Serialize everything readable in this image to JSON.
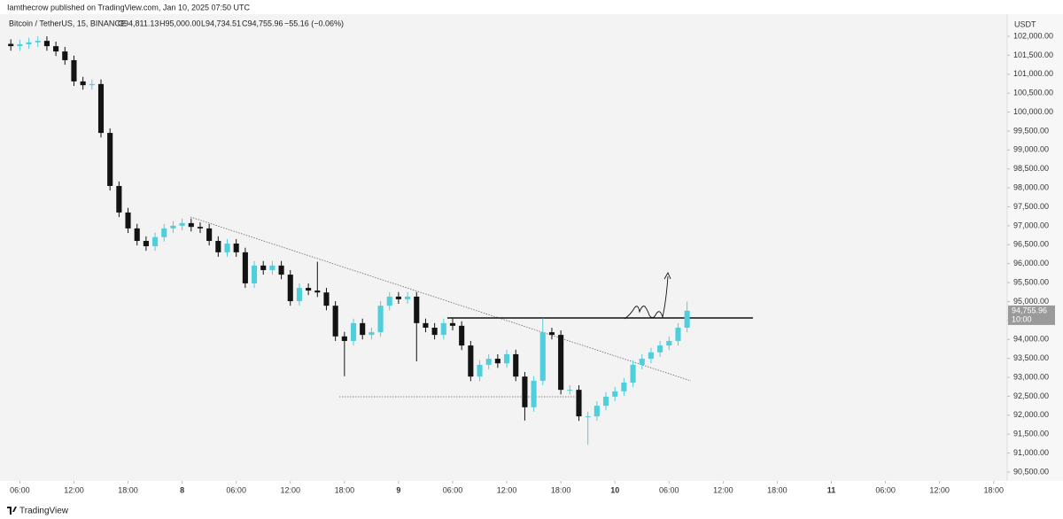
{
  "header": {
    "published": "Iamthecrow published on TradingView.com, Jan 10, 2025 07:50 UTC",
    "symbol": "Bitcoin / TetherUS, 15, BINANCE",
    "open": "O94,811.13",
    "high": "H95,000.00",
    "low": "L94,734.51",
    "close": "C94,755.96",
    "change": "−55.16 (−0.06%)"
  },
  "chart_data": {
    "type": "candlestick",
    "currency": "USDT",
    "up_color": "#4fcfdc",
    "down_color": "#131313",
    "x": [
      5,
      6,
      7,
      8,
      9,
      10,
      11,
      12,
      13,
      14,
      15,
      16,
      17,
      18,
      19,
      20,
      21,
      22,
      23,
      24,
      25,
      26,
      27,
      28,
      29,
      30,
      31,
      32,
      33,
      34,
      35,
      36,
      37,
      38,
      39,
      40,
      41,
      42,
      43,
      44,
      45,
      46,
      47,
      48,
      49,
      50,
      51,
      52,
      53,
      54,
      55,
      56,
      57,
      58,
      59,
      60,
      61,
      62,
      63,
      64,
      65,
      66,
      67,
      68,
      69,
      70,
      71,
      72,
      73,
      74,
      75,
      76,
      77,
      78,
      79,
      80
    ],
    "open": [
      101800,
      101740,
      101790,
      101840,
      101880,
      101740,
      101600,
      101370,
      100810,
      100710,
      100740,
      99450,
      98050,
      97350,
      96930,
      96600,
      96460,
      96700,
      96930,
      97000,
      97070,
      96970,
      96930,
      96600,
      96300,
      96530,
      96300,
      95480,
      95950,
      95830,
      95950,
      95710,
      95010,
      95360,
      95290,
      95240,
      94890,
      94080,
      93960,
      94430,
      94120,
      94190,
      94890,
      95130,
      95060,
      95130,
      94430,
      94310,
      94120,
      94430,
      94360,
      93840,
      93020,
      93330,
      93490,
      93370,
      93610,
      93020,
      92210,
      92910,
      94190,
      94120,
      92670,
      92670,
      91970,
      91970,
      92250,
      92490,
      92630,
      92860,
      93330,
      93490,
      93660,
      93840,
      93960,
      94310
    ],
    "high": [
      101920,
      101910,
      101960,
      102000,
      102000,
      101860,
      101720,
      101490,
      100930,
      100860,
      100860,
      99570,
      98170,
      97470,
      97050,
      96720,
      96820,
      97050,
      97120,
      97190,
      97190,
      97090,
      97050,
      96720,
      96650,
      96650,
      96420,
      96070,
      96070,
      96070,
      96070,
      95830,
      95480,
      95480,
      96050,
      95360,
      95010,
      94200,
      94550,
      94550,
      94310,
      95010,
      95250,
      95250,
      95250,
      95250,
      94550,
      94430,
      94550,
      94550,
      94480,
      93960,
      93450,
      93610,
      93610,
      93730,
      93730,
      93140,
      93030,
      94560,
      94310,
      94240,
      92790,
      92790,
      92090,
      92370,
      92610,
      92750,
      92980,
      93450,
      93610,
      93780,
      93960,
      94080,
      94430,
      95000
    ],
    "low": [
      101620,
      101620,
      101670,
      101720,
      101620,
      101480,
      101250,
      100690,
      100590,
      100590,
      99330,
      97930,
      97230,
      96810,
      96480,
      96340,
      96340,
      96580,
      96810,
      96880,
      96850,
      96810,
      96480,
      96180,
      96180,
      96180,
      95360,
      95360,
      95710,
      95710,
      95590,
      94890,
      94890,
      95170,
      95120,
      94770,
      93960,
      93030,
      93840,
      94000,
      94000,
      94070,
      94770,
      94940,
      94940,
      93420,
      94190,
      94000,
      94000,
      94240,
      93720,
      92900,
      92900,
      93210,
      93250,
      93250,
      92900,
      91860,
      92090,
      92790,
      94000,
      92550,
      92550,
      91850,
      91220,
      91850,
      92130,
      92370,
      92510,
      92740,
      93210,
      93370,
      93540,
      93720,
      93840,
      94190
    ],
    "close": [
      101740,
      101790,
      101840,
      101880,
      101740,
      101600,
      101370,
      100810,
      100710,
      100740,
      99450,
      98050,
      97350,
      96930,
      96600,
      96460,
      96700,
      96930,
      97000,
      97070,
      96970,
      96930,
      96600,
      96300,
      96530,
      96300,
      95480,
      95950,
      95830,
      95950,
      95710,
      95010,
      95360,
      95290,
      95240,
      94890,
      94080,
      93960,
      94430,
      94120,
      94190,
      94890,
      95130,
      95060,
      95130,
      94430,
      94310,
      94120,
      94430,
      94360,
      93840,
      93020,
      93330,
      93490,
      93370,
      93610,
      93020,
      92210,
      92910,
      94190,
      94120,
      92670,
      92670,
      91970,
      91970,
      92250,
      92490,
      92630,
      92860,
      93330,
      93490,
      93660,
      93840,
      93960,
      94310,
      94756
    ],
    "last_price": {
      "value": 94755.96,
      "label": "94,755.96"
    },
    "countdown": "10:00",
    "xlim": [
      3.8,
      115.5
    ],
    "ylim": [
      90266,
      102584
    ],
    "xticks": [
      {
        "value": 6,
        "label": "06:00"
      },
      {
        "value": 12,
        "label": "12:00"
      },
      {
        "value": 18,
        "label": "18:00"
      },
      {
        "value": 24,
        "label": "8"
      },
      {
        "value": 30,
        "label": "06:00"
      },
      {
        "value": 36,
        "label": "12:00"
      },
      {
        "value": 42,
        "label": "18:00"
      },
      {
        "value": 48,
        "label": "9"
      },
      {
        "value": 54,
        "label": "06:00"
      },
      {
        "value": 60,
        "label": "12:00"
      },
      {
        "value": 66,
        "label": "18:00"
      },
      {
        "value": 72,
        "label": "10"
      },
      {
        "value": 78,
        "label": "06:00"
      },
      {
        "value": 84,
        "label": "12:00"
      },
      {
        "value": 90,
        "label": "18:00"
      },
      {
        "value": 96,
        "label": "11"
      },
      {
        "value": 102,
        "label": "06:00"
      },
      {
        "value": 108,
        "label": "12:00"
      },
      {
        "value": 114,
        "label": "18:00"
      }
    ],
    "yticks": [
      {
        "value": 102000,
        "label": "102,000.00"
      },
      {
        "value": 101500,
        "label": "101,500.00"
      },
      {
        "value": 101000,
        "label": "101,000.00"
      },
      {
        "value": 100500,
        "label": "100,500.00"
      },
      {
        "value": 100000,
        "label": "100,000.00"
      },
      {
        "value": 99500,
        "label": "99,500.00"
      },
      {
        "value": 99000,
        "label": "99,000.00"
      },
      {
        "value": 98500,
        "label": "98,500.00"
      },
      {
        "value": 98000,
        "label": "98,000.00"
      },
      {
        "value": 97500,
        "label": "97,500.00"
      },
      {
        "value": 97000,
        "label": "97,000.00"
      },
      {
        "value": 96500,
        "label": "96,500.00"
      },
      {
        "value": 96000,
        "label": "96,000.00"
      },
      {
        "value": 95500,
        "label": "95,500.00"
      },
      {
        "value": 95000,
        "label": "95,000.00"
      },
      {
        "value": 94500,
        "label": "94,500.00"
      },
      {
        "value": 94000,
        "label": "94,000.00"
      },
      {
        "value": 93500,
        "label": "93,500.00"
      },
      {
        "value": 93000,
        "label": "93,000.00"
      },
      {
        "value": 92500,
        "label": "92,500.00"
      },
      {
        "value": 92000,
        "label": "92,000.00"
      },
      {
        "value": 91500,
        "label": "91,500.00"
      },
      {
        "value": 91000,
        "label": "91,000.00"
      },
      {
        "value": 90500,
        "label": "90,500.00"
      }
    ]
  },
  "footer": {
    "brand": "TradingView"
  }
}
